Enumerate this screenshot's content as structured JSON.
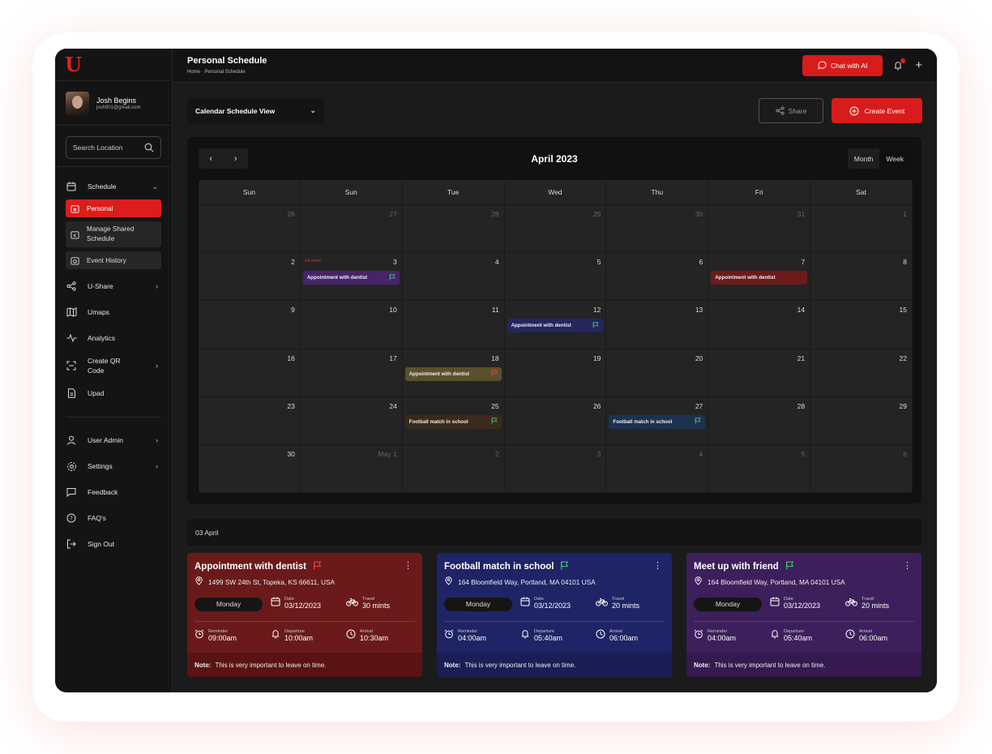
{
  "app": {
    "logo": "U"
  },
  "profile": {
    "name": "Josh Begins",
    "email": "josh901@gmail.com"
  },
  "search": {
    "placeholder": "Search Location"
  },
  "nav": {
    "schedule": "Schedule",
    "personal": "Personal",
    "manage_shared": "Manage Shared Schedule",
    "event_history": "Event History",
    "ushare": "U-Share",
    "umaps": "Umaps",
    "analytics": "Analytics",
    "create_qr": "Create QR Code",
    "upad": "Upad",
    "user_admin": "User Admin",
    "settings": "Settings",
    "feedback": "Feedback",
    "faqs": "FAQ's",
    "sign_out": "Sign Out"
  },
  "header": {
    "title": "Personal Schedule",
    "breadcrumb": "Home · Personal Schedule",
    "chat_label": "Chat with AI"
  },
  "toolbar": {
    "view_select": "Calendar Schedule View",
    "share_label": "Share",
    "create_label": "Create Event"
  },
  "calendar": {
    "month_title": "April 2023",
    "toggle": [
      "Month",
      "Week"
    ],
    "day_headers": [
      "Sun",
      "Sun",
      "Tue",
      "Wed",
      "Thu",
      "Fri",
      "Sat"
    ],
    "weeks": [
      [
        {
          "n": "26",
          "dim": true
        },
        {
          "n": "27",
          "dim": true
        },
        {
          "n": "28",
          "dim": true
        },
        {
          "n": "29",
          "dim": true
        },
        {
          "n": "30",
          "dim": true
        },
        {
          "n": "31",
          "dim": true
        },
        {
          "n": "1",
          "dim": true
        }
      ],
      [
        {
          "n": "2"
        },
        {
          "n": "3",
          "more": "+4 more",
          "ev": {
            "label": "Appointment with dentist",
            "color": "#46246a",
            "flag": "#3ec46d"
          }
        },
        {
          "n": "4"
        },
        {
          "n": "5"
        },
        {
          "n": "6"
        },
        {
          "n": "7",
          "ev": {
            "label": "Appointment with dentist",
            "color": "#6d1a1a",
            "flag": ""
          }
        },
        {
          "n": "8"
        }
      ],
      [
        {
          "n": "9"
        },
        {
          "n": "10"
        },
        {
          "n": "11"
        },
        {
          "n": "12",
          "ev": {
            "label": "Appointment with dentist",
            "color": "#25265e",
            "flag": "#3ec46d"
          }
        },
        {
          "n": "13"
        },
        {
          "n": "14"
        },
        {
          "n": "15"
        }
      ],
      [
        {
          "n": "16"
        },
        {
          "n": "17"
        },
        {
          "n": "18",
          "ev": {
            "label": "Appointment with dentist",
            "color": "#59502c",
            "flag": "#e04848"
          }
        },
        {
          "n": "19"
        },
        {
          "n": "20"
        },
        {
          "n": "21"
        },
        {
          "n": "22"
        }
      ],
      [
        {
          "n": "23"
        },
        {
          "n": "24"
        },
        {
          "n": "25",
          "ev": {
            "label": "Football match in school",
            "color": "#3a2a1c",
            "flag": "#3ec46d"
          }
        },
        {
          "n": "26"
        },
        {
          "n": "27",
          "ev": {
            "label": "Football match in school",
            "color": "#1d3150",
            "flag": "#3ec46d"
          }
        },
        {
          "n": "28"
        },
        {
          "n": "29"
        }
      ],
      [
        {
          "n": "30"
        },
        {
          "n": "May 1",
          "dim": true
        },
        {
          "n": "2",
          "dim": true
        },
        {
          "n": "3",
          "dim": true
        },
        {
          "n": "4",
          "dim": true
        },
        {
          "n": "5",
          "dim": true
        },
        {
          "n": "6",
          "dim": true
        }
      ]
    ]
  },
  "selected_date": "03 April",
  "cards": [
    {
      "title": "Appointment with dentist",
      "flag": "#e04848",
      "bg": "#6a1a1a",
      "note_bg": "#5a1313",
      "address": "1499 SW 24th St, Topeka, KS 66611, USA",
      "day": "Monday",
      "date_label": "Date",
      "date": "03/12/2023",
      "travel_label": "Travel",
      "travel": "30 mints",
      "reminder_label": "Reminder",
      "reminder": "09:00am",
      "departure_label": "Departure",
      "departure": "10:00am",
      "arrival_label": "Arrival",
      "arrival": "10:30am",
      "note_label": "Note:",
      "note": "This is very important to leave on time."
    },
    {
      "title": "Football match in school",
      "flag": "#3ec46d",
      "bg": "#1f2466",
      "note_bg": "#1a1e55",
      "address": "164 Bloomfield Way, Portland, MA 04101 USA",
      "day": "Monday",
      "date_label": "Date",
      "date": "03/12/2023",
      "travel_label": "Travel",
      "travel": "20 mints",
      "reminder_label": "Reminder",
      "reminder": "04:00am",
      "departure_label": "Departure",
      "departure": "05:40am",
      "arrival_label": "Arrival",
      "arrival": "06:00am",
      "note_label": "Note:",
      "note": "This is very important to leave on time."
    },
    {
      "title": "Meet up with friend",
      "flag": "#3ec46d",
      "bg": "#3d1f5c",
      "note_bg": "#341a4f",
      "address": "164 Bloomfield Way, Portland, MA 04101 USA",
      "day": "Monday",
      "date_label": "Date",
      "date": "03/12/2023",
      "travel_label": "Travel",
      "travel": "20 mints",
      "reminder_label": "Reminder",
      "reminder": "04:00am",
      "departure_label": "Departure",
      "departure": "05:40am",
      "arrival_label": "Arrival",
      "arrival": "06:00am",
      "note_label": "Note:",
      "note": "This is very important to leave on time."
    }
  ]
}
